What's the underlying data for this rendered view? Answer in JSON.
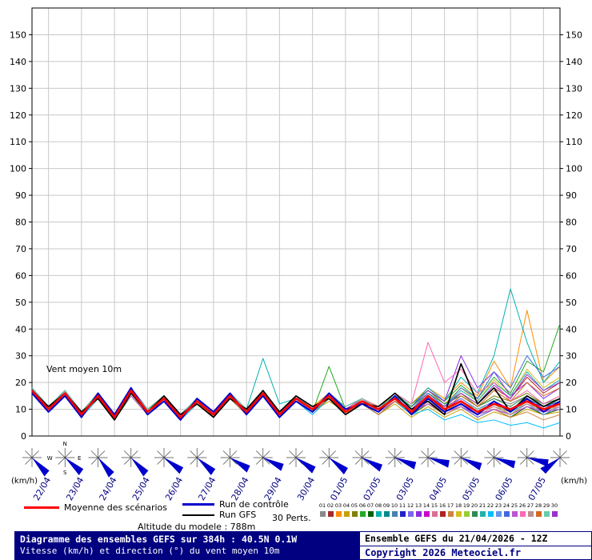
{
  "legend": {
    "mean_label": "Moyenne des scénarios",
    "control_label": "Run de contrôle",
    "gfs_label": "Run GFS",
    "perts_label": "30 Perts."
  },
  "altitude_label": "Altitude du modele : 788m",
  "footer": {
    "left_line1": "Diagramme des ensembles GEFS sur 384h : 40.5N 0.1W",
    "left_line2": "Vitesse (km/h) et direction (°) du vent moyen 10m",
    "right_line1": "Ensemble GEFS du 21/04/2026 - 12Z",
    "right_line2": "Copyright 2026 Meteociel.fr"
  },
  "chart_data": {
    "type": "line",
    "title": "Diagramme des ensembles GEFS sur 384h : 40.5N 0.1W",
    "ylabel": "Vitesse (km/h)",
    "unit": "(km/h)",
    "annotation": "Vent moyen 10m",
    "compass": [
      "N",
      "E",
      "S",
      "W"
    ],
    "grid": true,
    "ylim": [
      0,
      160
    ],
    "y_ticks": [
      0,
      10,
      20,
      30,
      40,
      50,
      60,
      70,
      80,
      90,
      100,
      110,
      120,
      130,
      140,
      150
    ],
    "x_hours_step": 12,
    "x_dates": [
      "22/04",
      "23/04",
      "24/04",
      "25/04",
      "26/04",
      "27/04",
      "28/04",
      "29/04",
      "30/04",
      "01/05",
      "02/05",
      "03/05",
      "04/05",
      "05/05",
      "06/05",
      "07/05"
    ],
    "colors": {
      "grid": "#c8c8c8",
      "axis": "#000000",
      "date_label": "#000080",
      "arrow": "#0000cc"
    },
    "wind_directions_deg": [
      130,
      125,
      135,
      130,
      120,
      125,
      115,
      110,
      118,
      122,
      112,
      105,
      100,
      108,
      102,
      98,
      225
    ],
    "mean": {
      "name": "Moyenne des scénarios",
      "color": "#ff0000",
      "values": [
        17,
        10,
        16,
        8,
        15,
        7,
        17,
        9,
        14,
        7,
        13,
        8,
        15,
        9,
        16,
        8,
        14,
        10,
        15,
        9,
        13,
        10,
        14,
        9,
        15,
        10,
        13,
        9,
        12,
        10,
        13,
        10,
        12
      ]
    },
    "control": {
      "name": "Run de contrôle",
      "color": "#0000cc",
      "values": [
        16,
        9,
        15,
        7,
        16,
        8,
        18,
        8,
        13,
        6,
        14,
        9,
        16,
        8,
        15,
        7,
        13,
        9,
        16,
        10,
        12,
        9,
        15,
        8,
        14,
        9,
        12,
        8,
        13,
        9,
        14,
        9,
        13
      ]
    },
    "gfs": {
      "name": "Run GFS",
      "color": "#000000",
      "values": [
        17,
        11,
        16,
        9,
        14,
        6,
        16,
        9,
        15,
        8,
        12,
        7,
        14,
        10,
        17,
        9,
        15,
        11,
        14,
        8,
        12,
        11,
        16,
        10,
        13,
        8,
        27,
        12,
        18,
        9,
        15,
        11,
        14
      ]
    },
    "members": [
      {
        "id": "01",
        "color": "#8a8a8a",
        "values": [
          16,
          9,
          15,
          8,
          16,
          8,
          16,
          8,
          13,
          6,
          12,
          9,
          14,
          8,
          15,
          9,
          13,
          9,
          14,
          8,
          12,
          9,
          13,
          10,
          16,
          12,
          15,
          11,
          14,
          12,
          15,
          12,
          14
        ]
      },
      {
        "id": "02",
        "color": "#a52a2a",
        "values": [
          18,
          11,
          17,
          9,
          14,
          6,
          16,
          10,
          15,
          8,
          14,
          7,
          16,
          10,
          17,
          7,
          15,
          9,
          16,
          10,
          14,
          9,
          15,
          8,
          13,
          9,
          11,
          8,
          10,
          8,
          11,
          9,
          10
        ]
      },
      {
        "id": "03",
        "color": "#ff8c00",
        "values": [
          17,
          10,
          15,
          7,
          15,
          8,
          18,
          9,
          13,
          7,
          12,
          8,
          14,
          9,
          15,
          8,
          13,
          11,
          16,
          8,
          14,
          11,
          16,
          12,
          18,
          14,
          20,
          15,
          28,
          18,
          47,
          20,
          26
        ]
      },
      {
        "id": "04",
        "color": "#c8a000",
        "values": [
          16,
          10,
          16,
          9,
          16,
          7,
          17,
          8,
          14,
          8,
          14,
          9,
          15,
          8,
          16,
          9,
          15,
          9,
          13,
          9,
          12,
          8,
          12,
          7,
          11,
          7,
          10,
          6,
          9,
          7,
          10,
          8,
          9
        ]
      },
      {
        "id": "05",
        "color": "#808000",
        "values": [
          17,
          9,
          16,
          8,
          14,
          7,
          16,
          9,
          15,
          7,
          13,
          9,
          16,
          10,
          15,
          9,
          14,
          10,
          16,
          11,
          14,
          10,
          15,
          11,
          17,
          12,
          16,
          11,
          15,
          13,
          16,
          12,
          15
        ]
      },
      {
        "id": "06",
        "color": "#22aa22",
        "values": [
          18,
          10,
          17,
          8,
          15,
          8,
          17,
          10,
          14,
          8,
          13,
          8,
          15,
          9,
          17,
          9,
          14,
          9,
          26,
          10,
          13,
          11,
          16,
          12,
          17,
          13,
          19,
          14,
          22,
          16,
          28,
          24,
          42
        ]
      },
      {
        "id": "07",
        "color": "#006400",
        "values": [
          16,
          9,
          15,
          7,
          14,
          6,
          15,
          8,
          13,
          7,
          12,
          7,
          14,
          8,
          15,
          8,
          13,
          9,
          14,
          9,
          12,
          8,
          13,
          8,
          12,
          8,
          11,
          7,
          10,
          7,
          11,
          8,
          10
        ]
      },
      {
        "id": "08",
        "color": "#00b2b2",
        "values": [
          17,
          10,
          16,
          9,
          15,
          8,
          17,
          9,
          14,
          7,
          13,
          9,
          15,
          10,
          29,
          12,
          14,
          10,
          15,
          9,
          14,
          10,
          16,
          11,
          18,
          13,
          22,
          16,
          30,
          55,
          35,
          20,
          28
        ]
      },
      {
        "id": "09",
        "color": "#008b8b",
        "values": [
          17,
          11,
          16,
          8,
          15,
          7,
          16,
          9,
          14,
          8,
          13,
          8,
          14,
          9,
          15,
          9,
          13,
          9,
          14,
          10,
          13,
          9,
          14,
          10,
          15,
          11,
          14,
          10,
          13,
          10,
          14,
          11,
          13
        ]
      },
      {
        "id": "10",
        "color": "#4682b4",
        "values": [
          16,
          10,
          15,
          8,
          14,
          7,
          16,
          8,
          13,
          7,
          12,
          8,
          14,
          9,
          15,
          8,
          14,
          9,
          15,
          10,
          12,
          9,
          13,
          9,
          14,
          10,
          13,
          9,
          12,
          9,
          13,
          10,
          12
        ]
      },
      {
        "id": "11",
        "color": "#2222cc",
        "values": [
          18,
          11,
          17,
          9,
          16,
          8,
          18,
          10,
          15,
          8,
          14,
          9,
          16,
          10,
          17,
          9,
          15,
          10,
          16,
          11,
          14,
          10,
          15,
          10,
          14,
          10,
          13,
          9,
          12,
          10,
          13,
          11,
          12
        ]
      },
      {
        "id": "12",
        "color": "#7b68ee",
        "values": [
          17,
          9,
          15,
          7,
          14,
          6,
          16,
          8,
          13,
          6,
          12,
          7,
          14,
          8,
          15,
          7,
          13,
          8,
          14,
          9,
          12,
          8,
          13,
          9,
          12,
          8,
          11,
          7,
          10,
          8,
          11,
          9,
          10
        ]
      },
      {
        "id": "13",
        "color": "#8a2be2",
        "values": [
          16,
          10,
          16,
          8,
          15,
          7,
          17,
          9,
          14,
          7,
          13,
          8,
          15,
          9,
          16,
          8,
          14,
          10,
          15,
          9,
          13,
          10,
          15,
          11,
          17,
          13,
          30,
          18,
          24,
          15,
          20,
          14,
          18
        ]
      },
      {
        "id": "14",
        "color": "#cc00cc",
        "values": [
          17,
          10,
          16,
          9,
          15,
          8,
          16,
          9,
          14,
          8,
          13,
          9,
          15,
          9,
          16,
          9,
          14,
          9,
          15,
          10,
          13,
          9,
          14,
          10,
          15,
          10,
          14,
          10,
          13,
          10,
          14,
          10,
          13
        ]
      },
      {
        "id": "15",
        "color": "#db7093",
        "values": [
          18,
          10,
          16,
          8,
          15,
          7,
          17,
          9,
          15,
          8,
          14,
          8,
          15,
          10,
          17,
          9,
          14,
          10,
          16,
          10,
          13,
          10,
          14,
          9,
          13,
          9,
          12,
          9,
          11,
          9,
          12,
          10,
          11
        ]
      },
      {
        "id": "16",
        "color": "#b22222",
        "values": [
          16,
          9,
          15,
          8,
          14,
          7,
          16,
          9,
          13,
          7,
          12,
          8,
          14,
          9,
          15,
          8,
          13,
          9,
          14,
          9,
          12,
          9,
          13,
          10,
          14,
          11,
          16,
          12,
          18,
          14,
          22,
          16,
          20
        ]
      },
      {
        "id": "17",
        "color": "#cd853f",
        "values": [
          17,
          10,
          16,
          8,
          15,
          8,
          17,
          9,
          14,
          8,
          13,
          8,
          15,
          9,
          16,
          9,
          14,
          10,
          15,
          10,
          13,
          9,
          14,
          9,
          12,
          8,
          11,
          8,
          10,
          7,
          9,
          6,
          8
        ]
      },
      {
        "id": "18",
        "color": "#d4c020",
        "values": [
          17,
          11,
          16,
          9,
          15,
          7,
          16,
          9,
          14,
          7,
          13,
          9,
          15,
          10,
          16,
          8,
          14,
          9,
          15,
          10,
          14,
          11,
          15,
          11,
          16,
          12,
          18,
          13,
          21,
          15,
          25,
          18,
          22
        ]
      },
      {
        "id": "19",
        "color": "#9acd32",
        "values": [
          16,
          10,
          15,
          8,
          14,
          7,
          15,
          8,
          13,
          7,
          12,
          8,
          14,
          8,
          15,
          8,
          13,
          9,
          14,
          9,
          12,
          8,
          13,
          9,
          14,
          9,
          13,
          9,
          12,
          8,
          13,
          9,
          12
        ]
      },
      {
        "id": "20",
        "color": "#2e8b57",
        "values": [
          18,
          11,
          17,
          9,
          16,
          8,
          17,
          10,
          15,
          8,
          14,
          9,
          16,
          10,
          17,
          9,
          15,
          10,
          16,
          10,
          14,
          10,
          15,
          11,
          16,
          12,
          15,
          11,
          14,
          11,
          15,
          12,
          14
        ]
      },
      {
        "id": "21",
        "color": "#20b2aa",
        "values": [
          17,
          10,
          16,
          8,
          15,
          7,
          16,
          9,
          14,
          7,
          13,
          8,
          15,
          9,
          16,
          8,
          14,
          9,
          15,
          9,
          13,
          9,
          14,
          10,
          15,
          11,
          17,
          13,
          20,
          15,
          24,
          17,
          21
        ]
      },
      {
        "id": "22",
        "color": "#00bfff",
        "values": [
          16,
          9,
          15,
          7,
          14,
          6,
          16,
          8,
          13,
          6,
          12,
          7,
          14,
          8,
          15,
          7,
          13,
          8,
          14,
          8,
          12,
          8,
          13,
          8,
          10,
          6,
          8,
          5,
          6,
          4,
          5,
          3,
          5
        ]
      },
      {
        "id": "23",
        "color": "#6495ed",
        "values": [
          17,
          10,
          16,
          9,
          15,
          8,
          17,
          9,
          14,
          8,
          13,
          8,
          15,
          9,
          16,
          9,
          14,
          10,
          15,
          10,
          13,
          10,
          14,
          10,
          15,
          11,
          14,
          10,
          13,
          9,
          12,
          8,
          11
        ]
      },
      {
        "id": "24",
        "color": "#4169e1",
        "values": [
          18,
          10,
          17,
          8,
          16,
          7,
          17,
          9,
          15,
          7,
          14,
          8,
          16,
          9,
          17,
          8,
          15,
          9,
          16,
          10,
          14,
          9,
          15,
          10,
          16,
          11,
          18,
          14,
          24,
          18,
          30,
          22,
          26
        ]
      },
      {
        "id": "25",
        "color": "#ba55d3",
        "values": [
          16,
          10,
          15,
          8,
          14,
          7,
          15,
          8,
          13,
          7,
          12,
          8,
          14,
          9,
          15,
          8,
          13,
          9,
          14,
          9,
          12,
          9,
          13,
          9,
          12,
          9,
          11,
          8,
          10,
          8,
          11,
          9,
          10
        ]
      },
      {
        "id": "26",
        "color": "#ff69b4",
        "values": [
          17,
          11,
          16,
          9,
          15,
          8,
          16,
          9,
          14,
          8,
          13,
          9,
          15,
          10,
          16,
          9,
          14,
          10,
          15,
          10,
          14,
          11,
          16,
          12,
          35,
          20,
          25,
          16,
          20,
          13,
          17,
          12,
          15
        ]
      },
      {
        "id": "27",
        "color": "#bc8f8f",
        "values": [
          17,
          10,
          16,
          8,
          15,
          7,
          17,
          9,
          14,
          7,
          13,
          8,
          15,
          9,
          16,
          8,
          14,
          9,
          15,
          10,
          13,
          9,
          14,
          9,
          13,
          9,
          12,
          8,
          11,
          8,
          12,
          9,
          11
        ]
      },
      {
        "id": "28",
        "color": "#d2691e",
        "values": [
          16,
          9,
          15,
          8,
          14,
          7,
          16,
          8,
          13,
          7,
          12,
          8,
          14,
          8,
          15,
          8,
          13,
          9,
          14,
          9,
          12,
          8,
          13,
          9,
          14,
          10,
          15,
          11,
          17,
          13,
          20,
          15,
          18
        ]
      },
      {
        "id": "29",
        "color": "#66cdaa",
        "values": [
          18,
          11,
          17,
          9,
          16,
          8,
          17,
          10,
          15,
          8,
          14,
          9,
          16,
          10,
          17,
          9,
          15,
          10,
          16,
          11,
          14,
          10,
          15,
          10,
          14,
          10,
          13,
          10,
          12,
          9,
          13,
          10,
          12
        ]
      },
      {
        "id": "30",
        "color": "#9932cc",
        "values": [
          17,
          10,
          16,
          8,
          15,
          7,
          16,
          9,
          14,
          8,
          13,
          8,
          15,
          9,
          16,
          9,
          14,
          10,
          15,
          9,
          13,
          10,
          14,
          10,
          15,
          11,
          16,
          12,
          19,
          14,
          23,
          17,
          20
        ]
      }
    ]
  }
}
